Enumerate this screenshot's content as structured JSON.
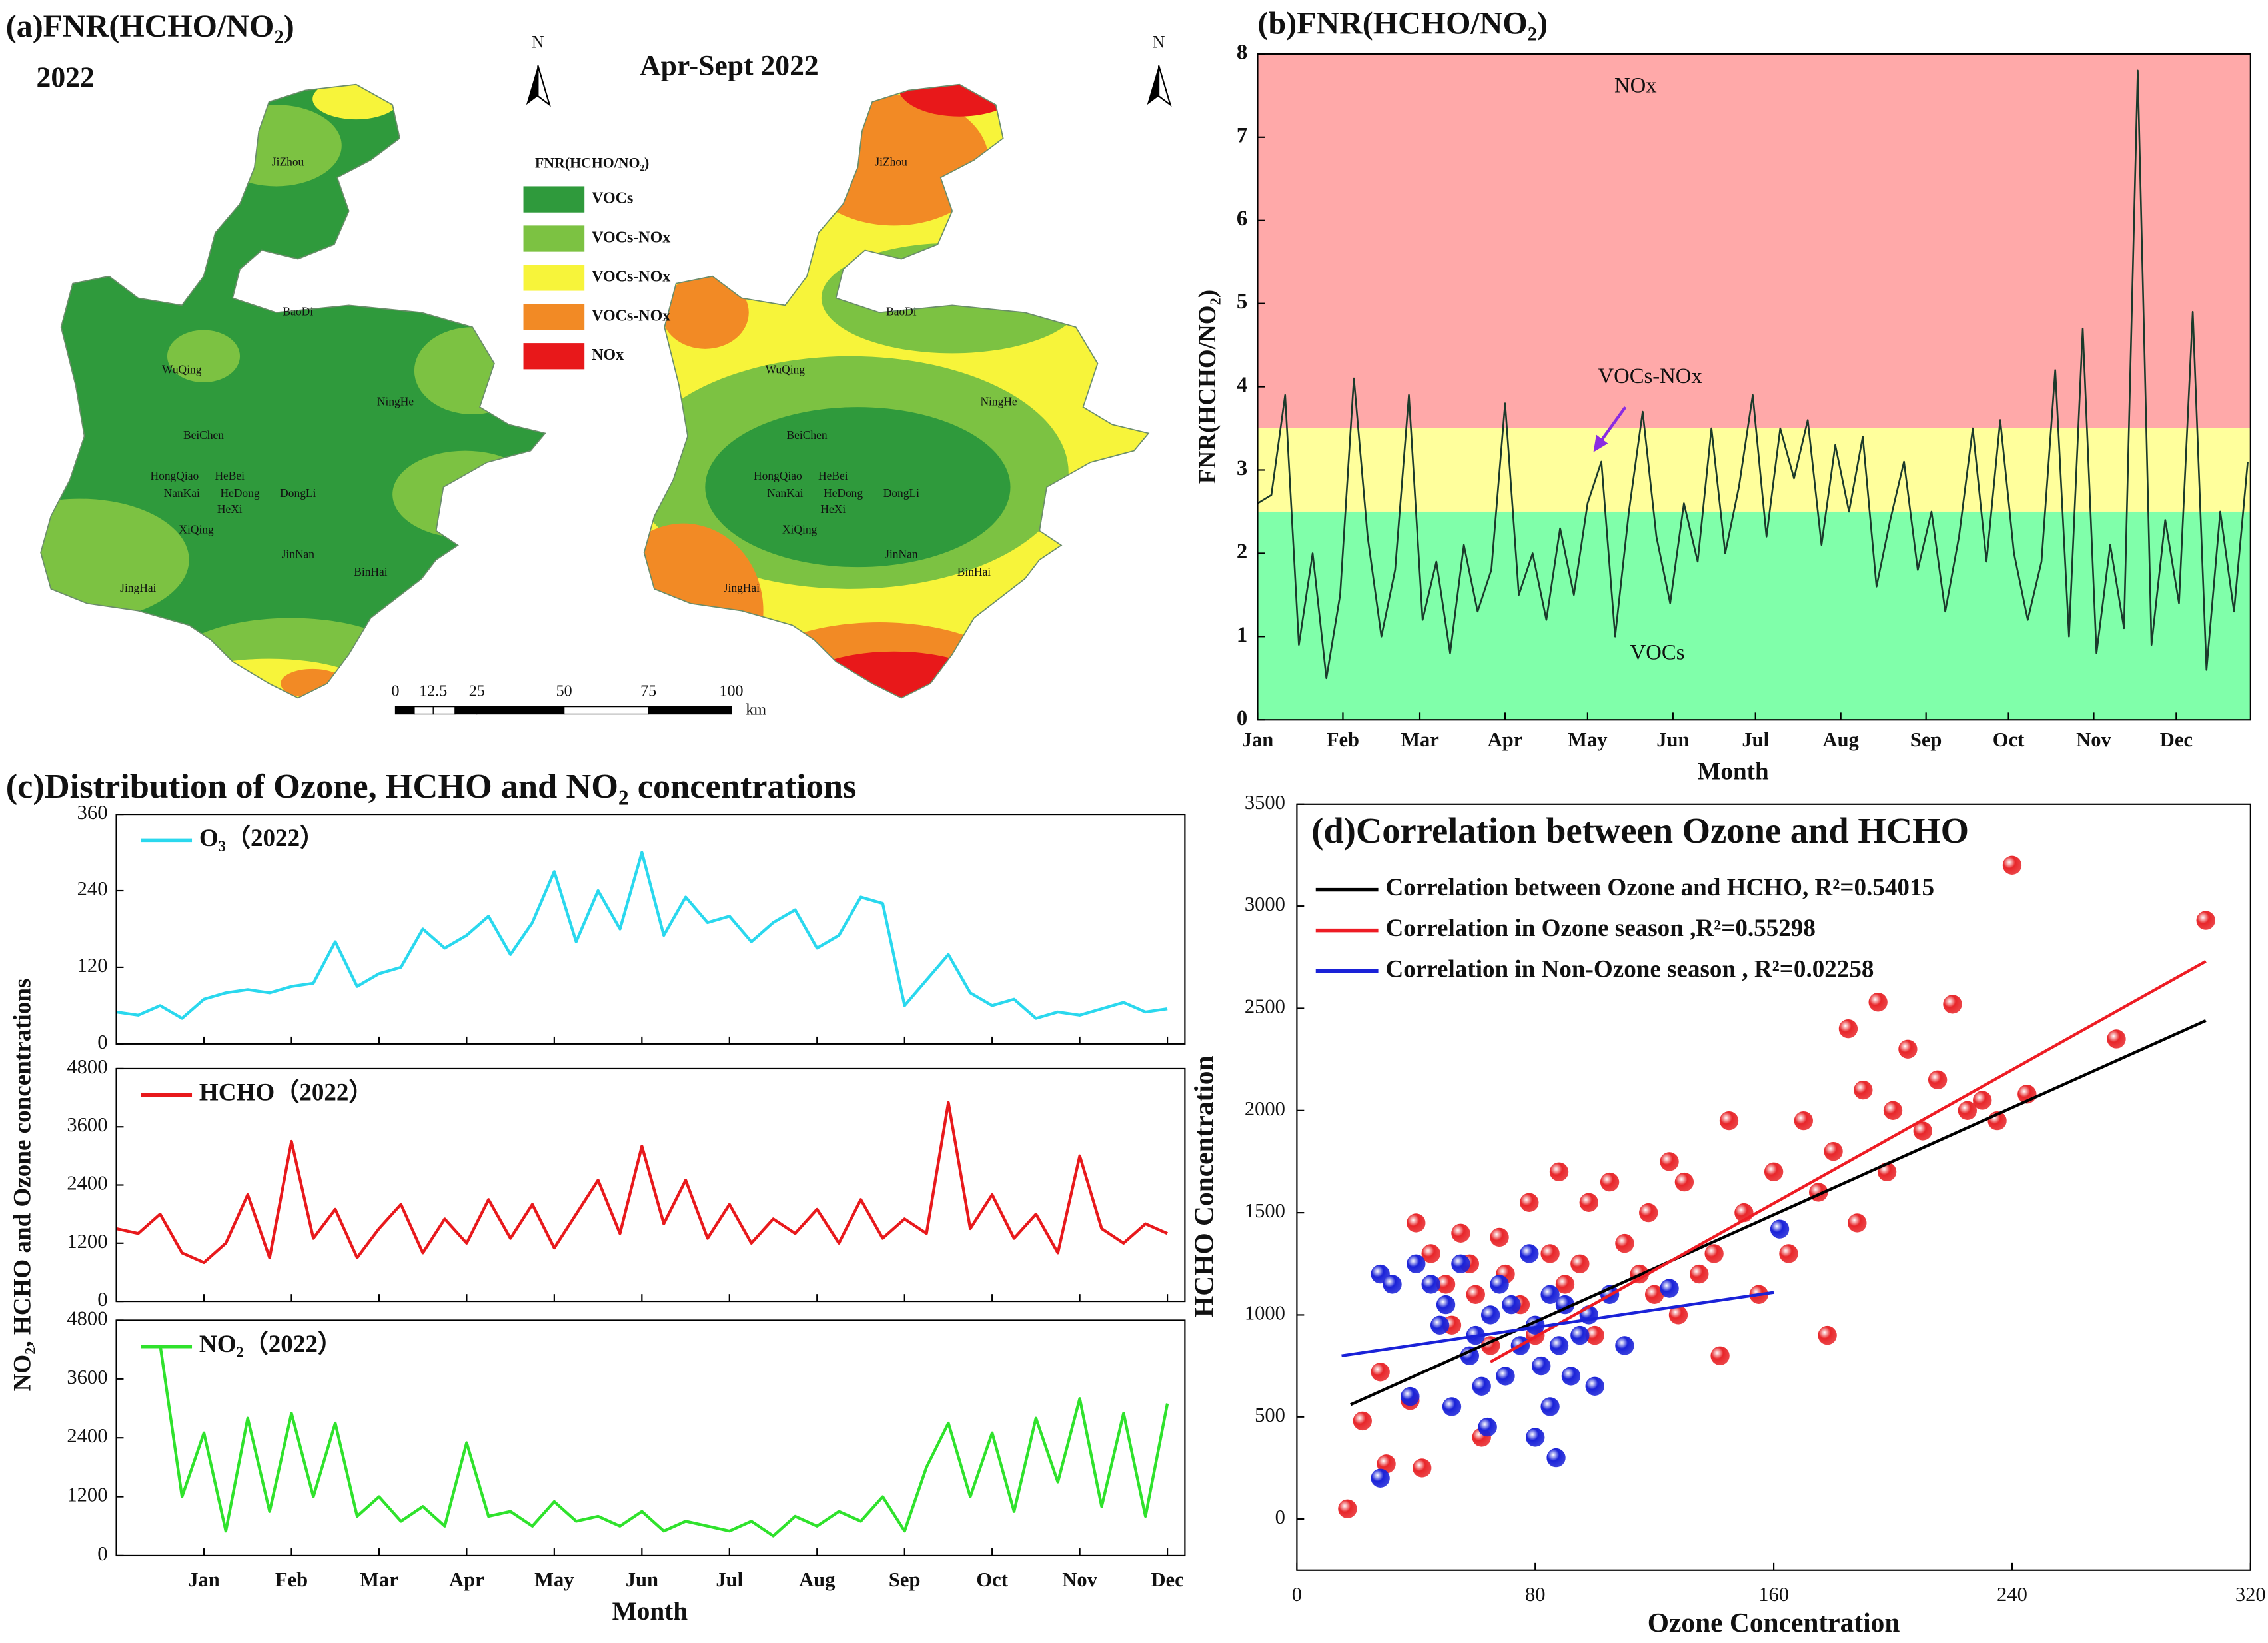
{
  "map_panel": {
    "title": "(a)FNR(HCHO/NO₂)",
    "year": "2022",
    "subtitle": "Apr-Sept 2022",
    "north": "N",
    "legend_title": "FNR(HCHO/NO₂)",
    "legend": [
      {
        "label": "VOCs",
        "color": "#2f9a3c"
      },
      {
        "label": "VOCs-NOx",
        "color": "#7cc242"
      },
      {
        "label": "VOCs-NOx",
        "color": "#f7f43a"
      },
      {
        "label": "VOCs-NOx",
        "color": "#f28a25"
      },
      {
        "label": "NOx",
        "color": "#e8181a"
      }
    ],
    "scale_labels": [
      "0",
      "12.5",
      "25",
      "50",
      "75",
      "100"
    ],
    "scale_unit": "km",
    "places": [
      "JiZhou",
      "BaoDi",
      "WuQing",
      "NingHe",
      "BeiChen",
      "HongQiao",
      "HeBei",
      "NanKai",
      "HeDong",
      "DongLi",
      "HeXi",
      "XiQing",
      "JinNan",
      "BinHai",
      "JingHai"
    ]
  },
  "chart_data": [
    {
      "type": "line",
      "title": "(b)FNR(HCHO/NO₂)",
      "xlabel": "Month",
      "ylabel": "FNR(HCHO/NO₂)",
      "xlim": [
        1,
        362
      ],
      "xticks": [
        {
          "value": 1,
          "label": "Jan"
        },
        {
          "value": 32,
          "label": "Feb"
        },
        {
          "value": 60,
          "label": "Mar"
        },
        {
          "value": 91,
          "label": "Apr"
        },
        {
          "value": 121,
          "label": "May"
        },
        {
          "value": 152,
          "label": "Jun"
        },
        {
          "value": 182,
          "label": "Jul"
        },
        {
          "value": 213,
          "label": "Aug"
        },
        {
          "value": 244,
          "label": "Sep"
        },
        {
          "value": 274,
          "label": "Oct"
        },
        {
          "value": 305,
          "label": "Nov"
        },
        {
          "value": 335,
          "label": "Dec"
        }
      ],
      "ylim": [
        0,
        8
      ],
      "yticks": [
        0,
        1,
        2,
        3,
        4,
        5,
        6,
        7,
        8
      ],
      "bands": [
        {
          "label": "NOx",
          "from": 3.5,
          "to": 8,
          "color": "#ffa9a9"
        },
        {
          "label": "VOCs-NOx",
          "from": 2.5,
          "to": 3.5,
          "color": "#ffff9c"
        },
        {
          "label": "VOCs",
          "from": 0,
          "to": 2.5,
          "color": "#80ffaa"
        }
      ],
      "x": [
        1,
        6,
        11,
        16,
        21,
        26,
        31,
        36,
        41,
        46,
        51,
        56,
        61,
        66,
        71,
        76,
        81,
        86,
        91,
        96,
        101,
        106,
        111,
        116,
        121,
        126,
        131,
        136,
        141,
        146,
        151,
        156,
        161,
        166,
        171,
        176,
        181,
        186,
        191,
        196,
        201,
        206,
        211,
        216,
        221,
        226,
        231,
        236,
        241,
        246,
        251,
        256,
        261,
        266,
        271,
        276,
        281,
        286,
        291,
        296,
        301,
        306,
        311,
        316,
        321,
        326,
        331,
        336,
        341,
        346,
        351,
        356,
        361
      ],
      "series": [
        {
          "name": "FNR",
          "color": "#1b3a2b",
          "values": [
            2.6,
            2.7,
            3.9,
            0.9,
            2.0,
            0.5,
            1.5,
            4.1,
            2.2,
            1.0,
            1.8,
            3.9,
            1.2,
            1.9,
            0.8,
            2.1,
            1.3,
            1.8,
            3.8,
            1.5,
            2.0,
            1.2,
            2.3,
            1.5,
            2.6,
            3.1,
            1.0,
            2.5,
            3.7,
            2.2,
            1.4,
            2.6,
            1.9,
            3.5,
            2.0,
            2.8,
            3.9,
            2.2,
            3.5,
            2.9,
            3.6,
            2.1,
            3.3,
            2.5,
            3.4,
            1.6,
            2.4,
            3.1,
            1.8,
            2.5,
            1.3,
            2.2,
            3.5,
            1.9,
            3.6,
            2.0,
            1.2,
            1.9,
            4.2,
            1.0,
            4.7,
            0.8,
            2.1,
            1.1,
            7.8,
            0.9,
            2.4,
            1.4,
            4.9,
            0.6,
            2.5,
            1.3,
            3.1
          ]
        }
      ]
    },
    {
      "type": "line-stack",
      "title": "(c)Distribution of Ozone, HCHO and NO₂ concentrations",
      "xlabel": "Month",
      "ylabel": "NO₂, HCHO and Ozone concentrations",
      "xlim": [
        0,
        12.2
      ],
      "xticks": [
        {
          "value": 1,
          "label": "Jan"
        },
        {
          "value": 2,
          "label": "Feb"
        },
        {
          "value": 3,
          "label": "Mar"
        },
        {
          "value": 4,
          "label": "Apr"
        },
        {
          "value": 5,
          "label": "May"
        },
        {
          "value": 6,
          "label": "Jun"
        },
        {
          "value": 7,
          "label": "Jul"
        },
        {
          "value": 8,
          "label": "Aug"
        },
        {
          "value": 9,
          "label": "Sep"
        },
        {
          "value": 10,
          "label": "Oct"
        },
        {
          "value": 11,
          "label": "Nov"
        },
        {
          "value": 12,
          "label": "Dec"
        }
      ],
      "x": [
        0,
        0.25,
        0.5,
        0.75,
        1,
        1.25,
        1.5,
        1.75,
        2,
        2.25,
        2.5,
        2.75,
        3,
        3.25,
        3.5,
        3.75,
        4,
        4.25,
        4.5,
        4.75,
        5,
        5.25,
        5.5,
        5.75,
        6,
        6.25,
        6.5,
        6.75,
        7,
        7.25,
        7.5,
        7.75,
        8,
        8.25,
        8.5,
        8.75,
        9,
        9.25,
        9.5,
        9.75,
        10,
        10.25,
        10.5,
        10.75,
        11,
        11.25,
        11.5,
        11.75,
        12
      ],
      "panels": [
        {
          "ylim": [
            0,
            360
          ],
          "yticks": [
            0,
            120,
            240,
            360
          ],
          "series": [
            {
              "name": "O₃（2022）",
              "color": "#2ad8ee",
              "values": [
                50,
                45,
                60,
                40,
                70,
                80,
                85,
                80,
                90,
                95,
                160,
                90,
                110,
                120,
                180,
                150,
                170,
                200,
                140,
                190,
                270,
                160,
                240,
                180,
                300,
                170,
                230,
                190,
                200,
                160,
                190,
                210,
                150,
                170,
                230,
                220,
                60,
                100,
                140,
                80,
                60,
                70,
                40,
                50,
                45,
                55,
                65,
                50,
                55
              ]
            }
          ]
        },
        {
          "ylim": [
            0,
            4800
          ],
          "yticks": [
            0,
            1200,
            2400,
            3600,
            4800
          ],
          "series": [
            {
              "name": "HCHO（2022）",
              "color": "#e8191c",
              "values": [
                1500,
                1400,
                1800,
                1000,
                800,
                1200,
                2200,
                900,
                3300,
                1300,
                1900,
                900,
                1500,
                2000,
                1000,
                1700,
                1200,
                2100,
                1300,
                2000,
                1100,
                1800,
                2500,
                1400,
                3200,
                1600,
                2500,
                1300,
                2000,
                1200,
                1700,
                1400,
                1900,
                1200,
                2100,
                1300,
                1700,
                1400,
                4100,
                1500,
                2200,
                1300,
                1800,
                1000,
                3000,
                1500,
                1200,
                1600,
                1400
              ]
            }
          ]
        },
        {
          "ylim": [
            0,
            4800
          ],
          "yticks": [
            0,
            1200,
            2400,
            3600,
            4800
          ],
          "series": [
            {
              "name": "NO₂（2022）",
              "color": "#2fe22c",
              "values": [
                null,
                null,
                4300,
                1200,
                2500,
                500,
                2800,
                900,
                2900,
                1200,
                2700,
                800,
                1200,
                700,
                1000,
                600,
                2300,
                800,
                900,
                600,
                1100,
                700,
                800,
                600,
                900,
                500,
                700,
                600,
                500,
                700,
                400,
                800,
                600,
                900,
                700,
                1200,
                500,
                1800,
                2700,
                1200,
                2500,
                900,
                2800,
                1500,
                3200,
                1000,
                2900,
                800,
                3100
              ]
            }
          ]
        }
      ]
    },
    {
      "type": "scatter",
      "title": "(d)Correlation between Ozone and HCHO",
      "xlabel": "Ozone Concentration",
      "ylabel": "HCHO Concentration",
      "xlim": [
        0,
        320
      ],
      "xticks": [
        0,
        80,
        160,
        240,
        320
      ],
      "ylim": [
        -250,
        3500
      ],
      "yticks": [
        0,
        500,
        1000,
        1500,
        2000,
        2500,
        3000,
        3500
      ],
      "series": [
        {
          "name": "Ozone season",
          "color": "#e8262a",
          "x": [
            17,
            22,
            28,
            30,
            38,
            42,
            40,
            45,
            50,
            52,
            55,
            58,
            60,
            62,
            65,
            68,
            70,
            75,
            78,
            80,
            85,
            88,
            90,
            95,
            98,
            100,
            105,
            110,
            115,
            118,
            120,
            125,
            128,
            130,
            135,
            140,
            142,
            145,
            150,
            155,
            160,
            165,
            170,
            175,
            178,
            180,
            185,
            188,
            190,
            195,
            198,
            200,
            205,
            210,
            215,
            220,
            225,
            230,
            235,
            240,
            245,
            275,
            305
          ],
          "y": [
            50,
            480,
            720,
            270,
            580,
            250,
            1450,
            1300,
            1150,
            950,
            1400,
            1250,
            1100,
            400,
            850,
            1380,
            1200,
            1050,
            1550,
            900,
            1300,
            1700,
            1150,
            1250,
            1550,
            900,
            1650,
            1350,
            1200,
            1500,
            1100,
            1750,
            1000,
            1650,
            1200,
            1300,
            800,
            1950,
            1500,
            1100,
            1700,
            1300,
            1950,
            1600,
            900,
            1800,
            2400,
            1450,
            2100,
            2530,
            1700,
            2000,
            2300,
            1900,
            2150,
            2520,
            2000,
            2050,
            1950,
            3200,
            2080,
            2350,
            2930
          ]
        },
        {
          "name": "Non-Ozone season",
          "color": "#1a22d8",
          "x": [
            28,
            28,
            32,
            38,
            40,
            45,
            48,
            50,
            52,
            55,
            58,
            60,
            62,
            64,
            65,
            68,
            70,
            72,
            75,
            78,
            80,
            80,
            82,
            85,
            85,
            87,
            88,
            90,
            92,
            95,
            98,
            100,
            105,
            110,
            125,
            162
          ],
          "y": [
            1200,
            200,
            1150,
            600,
            1250,
            1150,
            950,
            1050,
            550,
            1250,
            800,
            900,
            650,
            450,
            1000,
            1150,
            700,
            1050,
            850,
            1300,
            400,
            950,
            750,
            1100,
            550,
            300,
            850,
            1050,
            700,
            900,
            1000,
            650,
            1100,
            850,
            1130,
            1420
          ]
        }
      ],
      "lines": [
        {
          "name": "Correlation between Ozone and HCHO, R²=0.54015",
          "color": "#000000",
          "x": [
            18,
            305
          ],
          "y": [
            560,
            2440
          ]
        },
        {
          "name": "Correlation in Ozone season ,R²=0.55298",
          "color": "#ee1c24",
          "x": [
            65,
            305
          ],
          "y": [
            770,
            2730
          ]
        },
        {
          "name": "Correlation in Non-Ozone season , R²=0.02258",
          "color": "#1a22d8",
          "x": [
            15,
            160
          ],
          "y": [
            800,
            1110
          ]
        }
      ]
    }
  ]
}
